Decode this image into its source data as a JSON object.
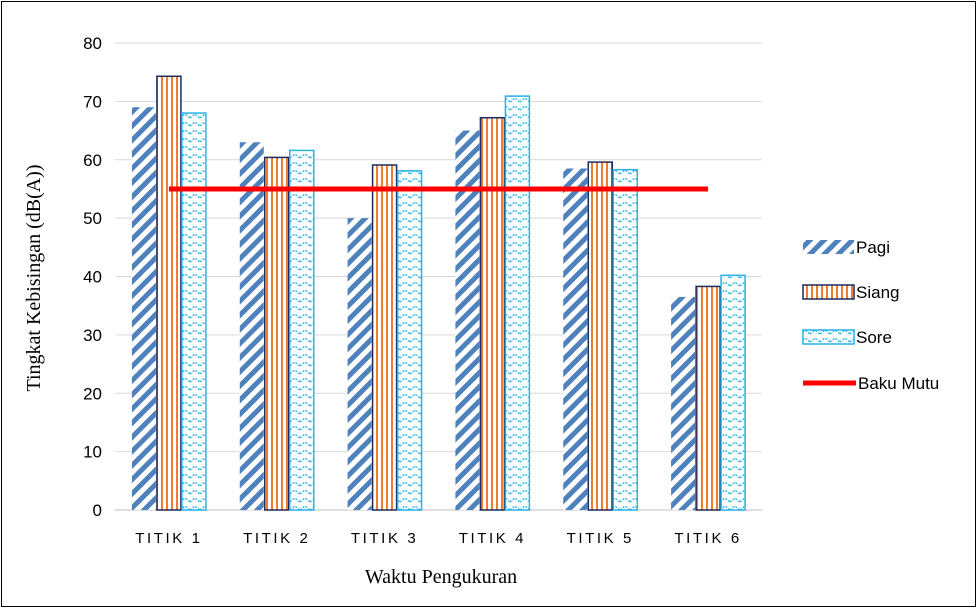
{
  "chart_data": {
    "type": "bar",
    "categories": [
      "TITIK 1",
      "TITIK 2",
      "TITIK 3",
      "TITIK 4",
      "TITIK 5",
      "TITIK 6"
    ],
    "series": [
      {
        "name": "Pagi",
        "values": [
          69,
          63,
          50,
          65,
          58.5,
          36.5
        ],
        "color": "#4f81bd",
        "pattern": "diagonal-stripes"
      },
      {
        "name": "Siang",
        "values": [
          74.3,
          60.4,
          59.1,
          67.2,
          59.6,
          38.3
        ],
        "color": "#ed7d31",
        "border": "#1f2a5c",
        "pattern": "vertical-stripes"
      },
      {
        "name": "Sore",
        "values": [
          68,
          61.6,
          58.1,
          70.9,
          58.3,
          40.2
        ],
        "color": "#27b3e8",
        "pattern": "zigzag"
      }
    ],
    "reference_line": {
      "name": "Baku Mutu",
      "value": 55,
      "color": "#ff0000"
    },
    "xlabel": "Waktu Pengukuran",
    "ylabel": "Tingkat Kebisingan (dB(A))",
    "ylim": [
      0,
      80
    ],
    "yticks": [
      0,
      10,
      20,
      30,
      40,
      50,
      60,
      70,
      80
    ],
    "grid": true,
    "legend_position": "right"
  }
}
